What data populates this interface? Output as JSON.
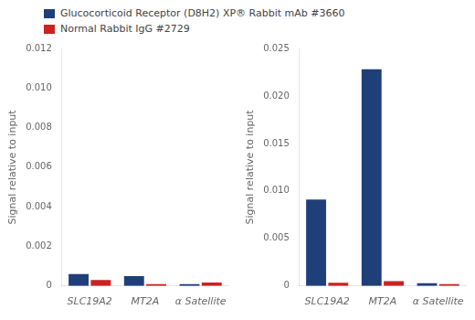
{
  "chart_data": [
    {
      "type": "bar",
      "categories": [
        "SLC19A2",
        "MT2A",
        "α Satellite"
      ],
      "series": [
        {
          "name": "Glucocorticoid Receptor (D8H2) XP® Rabbit mAb #3660",
          "color": "#1F3F7A",
          "values": [
            0.0006,
            0.0005,
            0.0001
          ]
        },
        {
          "name": "Normal Rabbit IgG #2729",
          "color": "#CC2222",
          "values": [
            0.0003,
            0.0001,
            0.00018
          ]
        }
      ],
      "ylabel": "Signal relative to input",
      "ylim": [
        0,
        0.012
      ],
      "yticks": [
        0,
        0.002,
        0.004,
        0.006,
        0.008,
        {
          "value": 0.01,
          "label": "0.010"
        },
        0.012
      ],
      "grid": false,
      "legend": "upper left"
    },
    {
      "type": "bar",
      "categories": [
        "SLC19A2",
        "MT2A",
        "α Satellite"
      ],
      "series": [
        {
          "name": "Glucocorticoid Receptor (D8H2) XP® Rabbit mAb #3660",
          "color": "#1F3F7A",
          "values": [
            0.0091,
            0.0228,
            0.0003
          ]
        },
        {
          "name": "Normal Rabbit IgG #2729",
          "color": "#CC2222",
          "values": [
            0.00035,
            0.0005,
            0.0002
          ]
        }
      ],
      "ylabel": "Signal relative to input",
      "ylim": [
        0,
        0.025
      ],
      "yticks": [
        0,
        0.005,
        {
          "value": 0.01,
          "label": "0.010"
        },
        0.015,
        {
          "value": 0.02,
          "label": "0.020"
        },
        0.025
      ],
      "grid": false
    }
  ]
}
